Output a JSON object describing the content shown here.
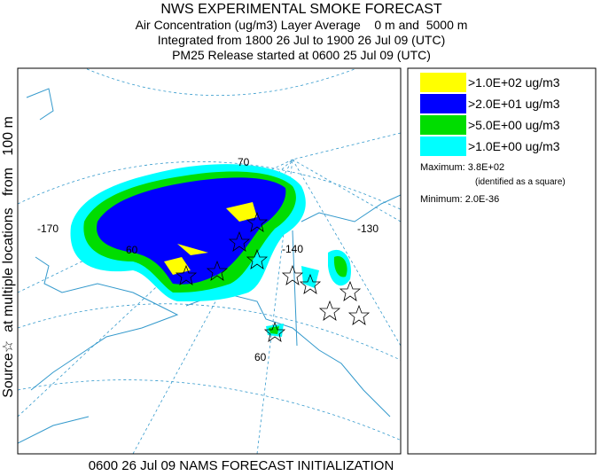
{
  "header": {
    "title": "NWS EXPERIMENTAL SMOKE FORECAST",
    "line1": "Air Concentration (ug/m3) Layer Average    0 m and  5000 m",
    "line2": "Integrated from 1800 26 Jul to 1900 26 Jul 09 (UTC)",
    "line3": "PM25 Release started at 0600 25 Jul 09 (UTC)"
  },
  "side_label": "Source☆  at multiple locations   from   100 m",
  "legend": [
    {
      "label": ">1.0E+02 ug/m3",
      "color": "#ffff00"
    },
    {
      "label": ">2.0E+01 ug/m3",
      "color": "#0000ff"
    },
    {
      "label": ">5.0E+00 ug/m3",
      "color": "#00dd00"
    },
    {
      "label": ">1.0E+00 ug/m3",
      "color": "#00ffff"
    }
  ],
  "stats": {
    "maximum": "Maximum: 3.8E+02",
    "max_note": "(identified as a square)",
    "minimum": "Minimum: 2.0E-36"
  },
  "map_labels": {
    "lat70": "70",
    "lat60a": "60",
    "lat60b": "60",
    "lon170": "-170",
    "lon140": "-140",
    "lon130": "-130"
  },
  "footer": "0600 26 Jul 09 NAMS FORECAST INITIALIZATION"
}
